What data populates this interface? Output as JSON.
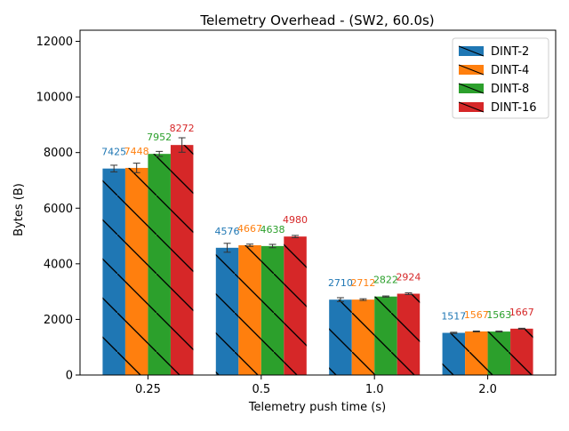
{
  "chart_data": {
    "type": "bar",
    "title": "Telemetry Overhead - (SW2, 60.0s)",
    "xlabel": "Telemetry push time (s)",
    "ylabel": "Bytes (B)",
    "categories": [
      "0.25",
      "0.5",
      "1.0",
      "2.0"
    ],
    "ylim": [
      0,
      12400
    ],
    "yticks": [
      0,
      2000,
      4000,
      6000,
      8000,
      10000,
      12000
    ],
    "grid": false,
    "legend_position": "top-right",
    "series": [
      {
        "name": "DINT-2",
        "color": "#1f77b4",
        "values": [
          7425,
          4576,
          2710,
          1517
        ],
        "errors": [
          120,
          160,
          70,
          20
        ],
        "labels": [
          "7425",
          "4576",
          "2710",
          "1517"
        ]
      },
      {
        "name": "DINT-4",
        "color": "#ff7f0e",
        "values": [
          7448,
          4667,
          2712,
          1567
        ],
        "errors": [
          170,
          40,
          30,
          15
        ],
        "labels": [
          "7448",
          "4667",
          "2712",
          "1567"
        ]
      },
      {
        "name": "DINT-8",
        "color": "#2ca02c",
        "values": [
          7952,
          4638,
          2822,
          1563
        ],
        "errors": [
          90,
          60,
          20,
          15
        ],
        "labels": [
          "7952",
          "4638",
          "2822",
          "1563"
        ]
      },
      {
        "name": "DINT-16",
        "color": "#d62728",
        "values": [
          8272,
          4980,
          2924,
          1667
        ],
        "errors": [
          260,
          40,
          30,
          15
        ],
        "labels": [
          "8272",
          "4980",
          "2924",
          "1667"
        ]
      }
    ]
  }
}
